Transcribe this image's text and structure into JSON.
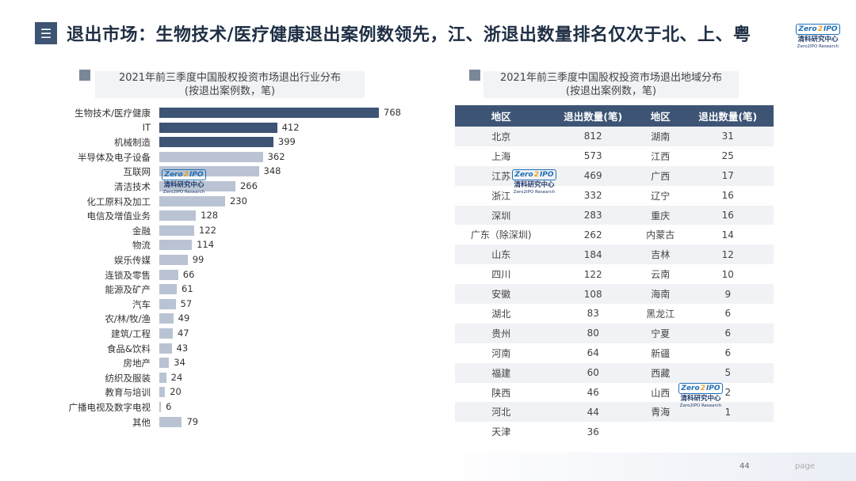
{
  "header": {
    "icon": "menu-icon",
    "title": "退出市场：生物技术/医疗健康退出案例数领先，江、浙退出数量排名仅次于北、上、粤"
  },
  "logo": {
    "mark_left": "Zero",
    "mark_mid": "2",
    "mark_right": "IPO",
    "cn": "清科研究中心",
    "en": "Zero2IPO Research"
  },
  "left_panel": {
    "title_line1": "2021年前三季度中国股权投资市场退出行业分布",
    "title_line2": "(按退出案例数，笔)"
  },
  "right_panel": {
    "title_line1": "2021年前三季度中国股权投资市场退出地域分布",
    "title_line2": "(按退出案例数，笔)"
  },
  "chart_data": {
    "type": "bar",
    "orientation": "horizontal",
    "categories": [
      "生物技术/医疗健康",
      "IT",
      "机械制造",
      "半导体及电子设备",
      "互联网",
      "清洁技术",
      "化工原料及加工",
      "电信及增值业务",
      "金融",
      "物流",
      "娱乐传媒",
      "连锁及零售",
      "能源及矿产",
      "汽车",
      "农/林/牧/渔",
      "建筑/工程",
      "食品&饮料",
      "房地产",
      "纺织及服装",
      "教育与培训",
      "广播电视及数字电视",
      "其他"
    ],
    "values": [
      768,
      412,
      399,
      362,
      348,
      266,
      230,
      128,
      122,
      114,
      99,
      66,
      61,
      57,
      49,
      47,
      43,
      34,
      24,
      20,
      6,
      79
    ],
    "colors": {
      "top": "#3d5474",
      "rest": "#b9c3d3"
    },
    "top_count": 3,
    "title": "2021年前三季度中国股权投资市场退出行业分布",
    "xlabel": "",
    "ylabel": ""
  },
  "region_table": {
    "headers": [
      "地区",
      "退出数量(笔)",
      "地区",
      "退出数量(笔)"
    ],
    "rows": [
      [
        "北京",
        "812",
        "湖南",
        "31"
      ],
      [
        "上海",
        "573",
        "江西",
        "25"
      ],
      [
        "江苏",
        "469",
        "广西",
        "17"
      ],
      [
        "浙江",
        "332",
        "辽宁",
        "16"
      ],
      [
        "深圳",
        "283",
        "重庆",
        "16"
      ],
      [
        "广东（除深圳)",
        "262",
        "内蒙古",
        "14"
      ],
      [
        "山东",
        "184",
        "吉林",
        "12"
      ],
      [
        "四川",
        "122",
        "云南",
        "10"
      ],
      [
        "安徽",
        "108",
        "海南",
        "9"
      ],
      [
        "湖北",
        "83",
        "黑龙江",
        "6"
      ],
      [
        "贵州",
        "80",
        "宁夏",
        "6"
      ],
      [
        "河南",
        "64",
        "新疆",
        "6"
      ],
      [
        "福建",
        "60",
        "西藏",
        "5"
      ],
      [
        "陕西",
        "46",
        "山西",
        "2"
      ],
      [
        "河北",
        "44",
        "青海",
        "1"
      ],
      [
        "天津",
        "36",
        "",
        ""
      ]
    ]
  },
  "footer": {
    "page_number": "44",
    "page_word": "page"
  }
}
